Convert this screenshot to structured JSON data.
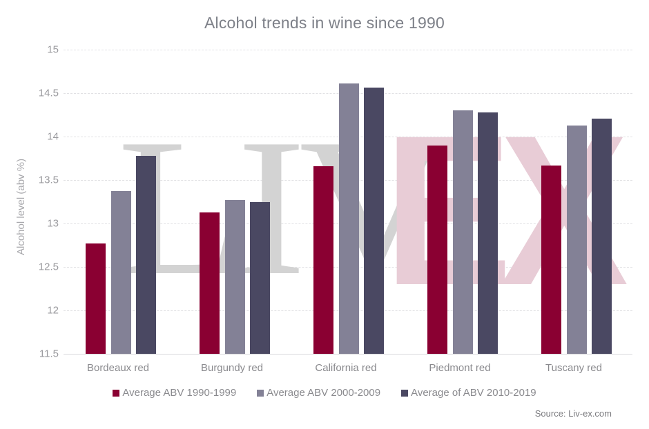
{
  "chart_data": {
    "type": "bar",
    "title": "Alcohol trends in wine since 1990",
    "xlabel": "",
    "ylabel": "Alcohol level (abv %)",
    "ylim": [
      11.5,
      15
    ],
    "yticks": [
      "15",
      "14.5",
      "14",
      "13.5",
      "13",
      "12.5",
      "12",
      "11.5"
    ],
    "grid": true,
    "legend_position": "bottom",
    "categories": [
      "Bordeaux red",
      "Burgundy red",
      "California red",
      "Piedmont red",
      "Tuscany red"
    ],
    "series": [
      {
        "name": "Average ABV 1990-1999",
        "color": "#8a0032",
        "values": [
          12.77,
          13.13,
          13.66,
          13.9,
          13.67
        ]
      },
      {
        "name": "Average ABV 2000-2009",
        "color": "#838196",
        "values": [
          13.37,
          13.27,
          14.61,
          14.3,
          14.13
        ]
      },
      {
        "name": "Average of ABV 2010-2019",
        "color": "#4a4862",
        "values": [
          13.78,
          13.25,
          14.56,
          14.28,
          14.21
        ]
      }
    ],
    "source": "Source: Liv-ex.com",
    "watermark": {
      "left": "LIV",
      "right": "EX"
    }
  }
}
